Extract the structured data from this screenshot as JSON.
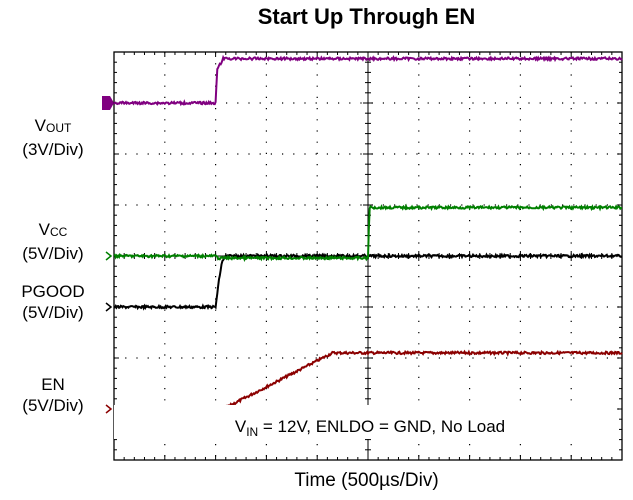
{
  "chart_data": {
    "type": "line",
    "title": "Start Up Through EN",
    "xlabel": "Time (500µs/Div)",
    "x_divisions": 10,
    "y_divisions": 8,
    "grid": true,
    "annotation": {
      "main": "V",
      "sub": "IN",
      "rest": " = 12V, ENLDO = GND, No Load"
    },
    "channels": [
      {
        "id": "vout",
        "name_main": "V",
        "name_sub": "OUT",
        "scale": "(3V/Div)",
        "color": "#8b0000",
        "ground_div": 7,
        "x": [
          0,
          2.1,
          2.25,
          4.3,
          10
        ],
        "y": [
          0,
          0,
          0.05,
          1.1,
          1.1
        ]
      },
      {
        "id": "vcc",
        "name_main": "V",
        "name_sub": "CC",
        "scale": "(5V/Div)",
        "color": "#000000",
        "ground_div": 5,
        "x": [
          0,
          2.0,
          2.07,
          2.13,
          2.2,
          10
        ],
        "y": [
          0,
          0,
          0.55,
          0.9,
          1.0,
          1.0
        ]
      },
      {
        "id": "pgood",
        "name_main": "PGOOD",
        "name_sub": "",
        "scale": "(5V/Div)",
        "color": "#008000",
        "ground_div": 4,
        "x": [
          0,
          2.0,
          2.05,
          5.0,
          5.03,
          10
        ],
        "y": [
          0,
          0,
          -0.04,
          -0.04,
          0.95,
          0.95
        ]
      },
      {
        "id": "en",
        "name_main": "EN",
        "name_sub": "",
        "scale": "(5V/Div)",
        "color": "#800080",
        "ground_div": 1,
        "x": [
          0,
          2.0,
          2.03,
          2.15,
          10
        ],
        "y": [
          0,
          0,
          0.65,
          0.87,
          0.87
        ]
      }
    ]
  }
}
